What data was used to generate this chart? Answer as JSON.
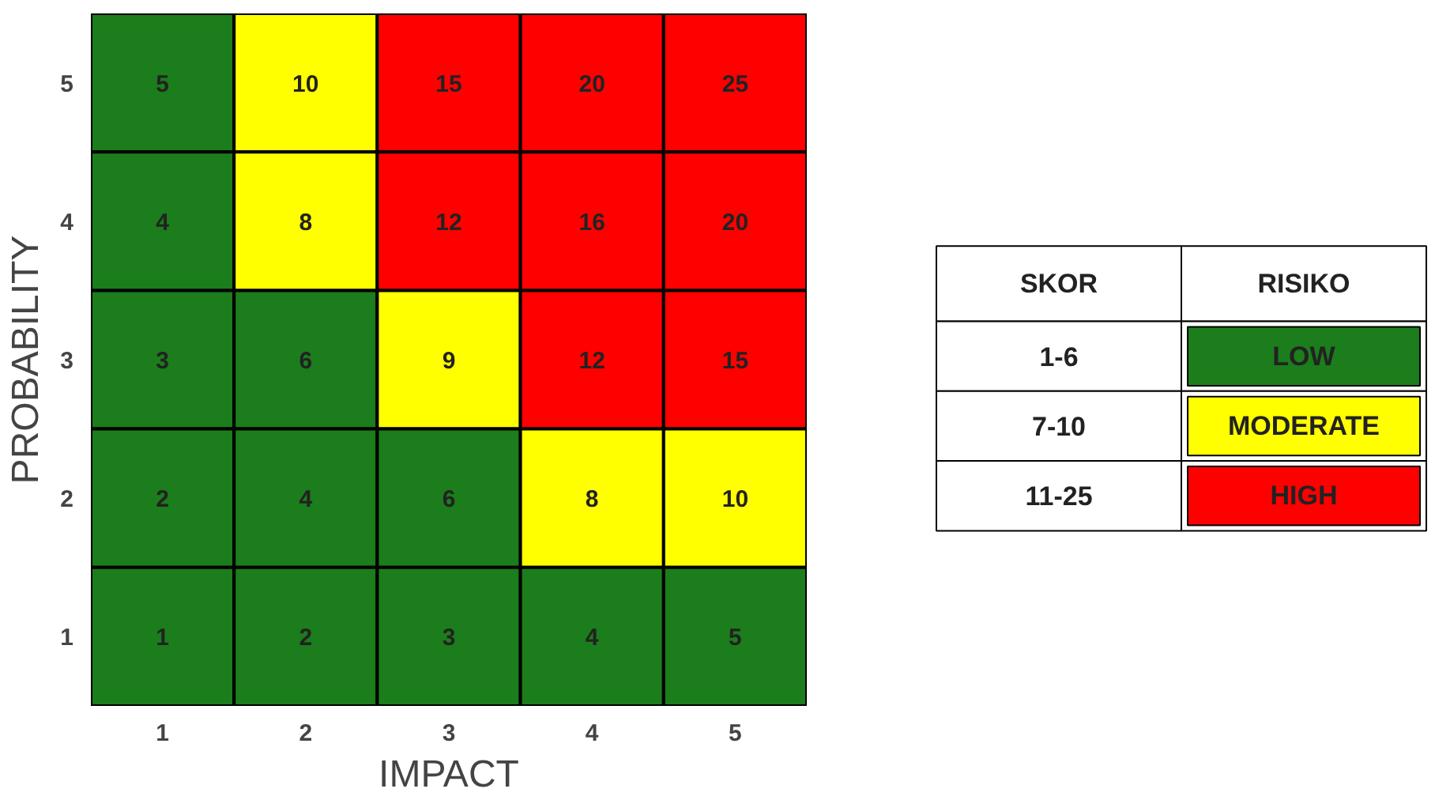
{
  "chart_data": [
    {
      "type": "heatmap",
      "xlabel": "IMPACT",
      "ylabel": "PROBABILITY",
      "categories": [
        "1",
        "2",
        "3",
        "4",
        "5"
      ],
      "y_categories": [
        "5",
        "4",
        "3",
        "2",
        "1"
      ],
      "cells": [
        [
          5,
          10,
          15,
          20,
          25
        ],
        [
          4,
          8,
          12,
          16,
          20
        ],
        [
          3,
          6,
          9,
          12,
          15
        ],
        [
          2,
          4,
          6,
          8,
          10
        ],
        [
          1,
          2,
          3,
          4,
          5
        ]
      ],
      "colors": [
        "#1b7d1b",
        "#ffff00",
        "#ff0000",
        "#ff0000",
        "#ff0000",
        "#1b7d1b",
        "#ffff00",
        "#ff0000",
        "#ff0000",
        "#ff0000",
        "#1b7d1b",
        "#1b7d1b",
        "#ffff00",
        "#ff0000",
        "#ff0000",
        "#1b7d1b",
        "#1b7d1b",
        "#1b7d1b",
        "#ffff00",
        "#ffff00",
        "#1b7d1b",
        "#1b7d1b",
        "#1b7d1b",
        "#1b7d1b",
        "#1b7d1b"
      ],
      "data_labels": true
    },
    {
      "type": "other",
      "annotations": [
        "SKOR",
        "RISIKO",
        "1-6",
        "LOW",
        "7-10",
        "MODERATE",
        "11-25",
        "HIGH"
      ],
      "colors": [
        "#1b7d1b",
        "#ffff00",
        "#ff0000"
      ]
    }
  ]
}
